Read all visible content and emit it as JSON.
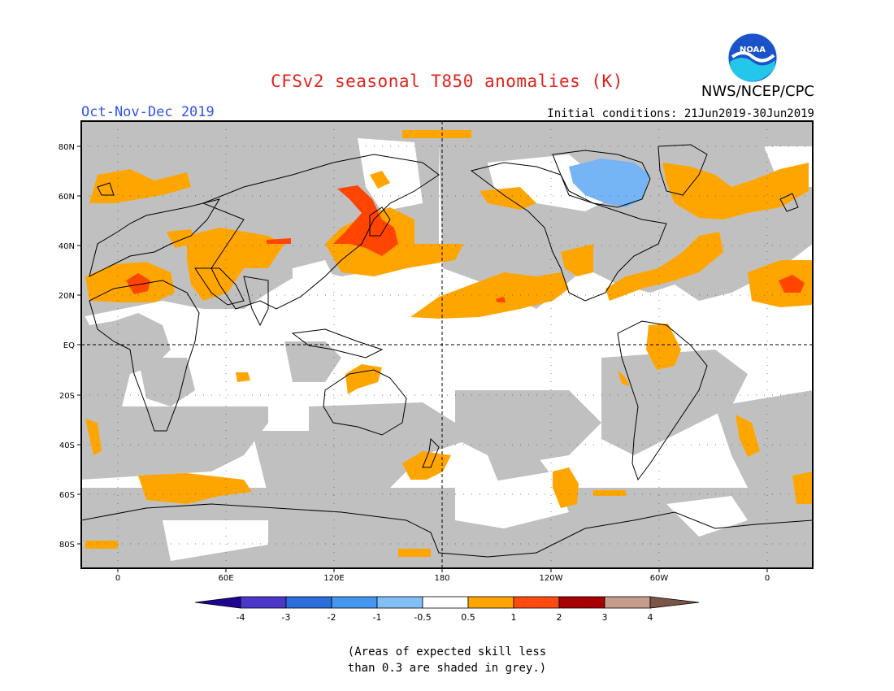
{
  "header": {
    "title": "CFSv2 seasonal T850 anomalies (K)",
    "season": "Oct-Nov-Dec 2019",
    "agency": "NWS/NCEP/CPC",
    "initial_conditions": "Initial conditions: 21Jun2019-30Jun2019",
    "logo_text": "NOAA"
  },
  "map": {
    "lat_labels": [
      "80N",
      "60N",
      "40N",
      "20N",
      "EQ",
      "20S",
      "40S",
      "60S",
      "80S"
    ],
    "lon_labels": [
      "0",
      "60E",
      "120E",
      "180",
      "120W",
      "60W",
      "0"
    ],
    "colors": {
      "grey": "#c0c0c0",
      "orange": "#ffa500",
      "red_orange": "#ff4500",
      "light_blue": "#75b4f5"
    }
  },
  "legend": {
    "tick_labels": [
      "-4",
      "-3",
      "-2",
      "-1",
      "-0.5",
      "0.5",
      "1",
      "2",
      "3",
      "4"
    ],
    "bins": [
      {
        "color": "#1f0391"
      },
      {
        "color": "#4a36c9"
      },
      {
        "color": "#2c6ddc"
      },
      {
        "color": "#4596ee"
      },
      {
        "color": "#82bff7"
      },
      {
        "color": "#ffffff"
      },
      {
        "color": "#ffa500"
      },
      {
        "color": "#ff4a10"
      },
      {
        "color": "#a60000"
      },
      {
        "color": "#c69c8c"
      },
      {
        "color": "#7a5548"
      }
    ]
  },
  "note": {
    "line1": "(Areas of expected skill less",
    "line2": "than 0.3 are shaded in grey.)"
  }
}
